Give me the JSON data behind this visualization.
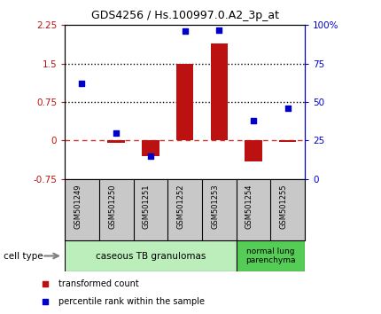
{
  "title": "GDS4256 / Hs.100997.0.A2_3p_at",
  "samples": [
    "GSM501249",
    "GSM501250",
    "GSM501251",
    "GSM501252",
    "GSM501253",
    "GSM501254",
    "GSM501255"
  ],
  "transformed_count": [
    0.01,
    -0.05,
    -0.3,
    1.5,
    1.9,
    -0.4,
    -0.02
  ],
  "percentile_rank": [
    62,
    30,
    15,
    96,
    97,
    38,
    46
  ],
  "ylim_left": [
    -0.75,
    2.25
  ],
  "ylim_right": [
    0,
    100
  ],
  "yticks_left": [
    -0.75,
    0,
    0.75,
    1.5,
    2.25
  ],
  "yticks_right": [
    0,
    25,
    50,
    75,
    100
  ],
  "ytick_labels_left": [
    "-0.75",
    "0",
    "0.75",
    "1.5",
    "2.25"
  ],
  "ytick_labels_right": [
    "0",
    "25",
    "50",
    "75",
    "100%"
  ],
  "hlines": [
    0.75,
    1.5
  ],
  "bar_color": "#bb1111",
  "dot_color": "#0000cc",
  "dashed_line_color": "#cc3333",
  "cell_type_0_label": "caseous TB granulomas",
  "cell_type_0_color": "#bbeebb",
  "cell_type_1_label": "normal lung\nparenchyma",
  "cell_type_1_color": "#55cc55",
  "legend_item_0_color": "#bb1111",
  "legend_item_0_label": "transformed count",
  "legend_item_1_color": "#0000cc",
  "legend_item_1_label": "percentile rank within the sample",
  "cell_type_label": "cell type",
  "bg_color": "#ffffff",
  "plot_bg": "#ffffff",
  "tick_area_color": "#c8c8c8"
}
